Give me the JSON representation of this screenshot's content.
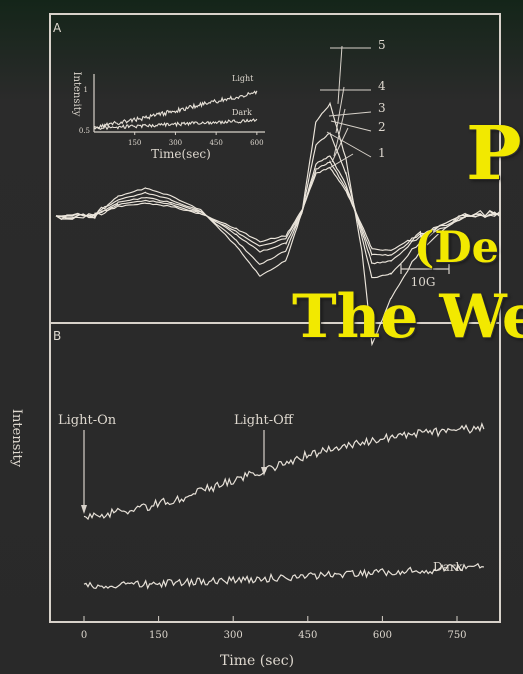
{
  "slide": {
    "background_color": "#1f3324",
    "title_color": "#f2e900",
    "title_lines": [
      "P",
      "(De",
      "The We"
    ]
  },
  "figure": {
    "y_axis_label": "Intensity",
    "x_axis_label": "Time (sec)",
    "panel_a_label": "A",
    "panel_b_label": "B",
    "scale_bar_label": "10G",
    "spectrum_labels": [
      "5",
      "4",
      "3",
      "2",
      "1"
    ],
    "inset": {
      "ylabel": "Intensity",
      "xlabel": "Time(sec)",
      "xticks": [
        "150",
        "300",
        "450",
        "600"
      ],
      "yticks": [
        "1",
        "0.5"
      ],
      "series_labels": [
        "Light",
        "Dark"
      ]
    },
    "panel_b_annotations": {
      "light_on": "Light-On",
      "light_off": "Light-Off",
      "dark": "Dark"
    },
    "panel_b_xticks": [
      "0",
      "150",
      "300",
      "450",
      "600",
      "750"
    ]
  },
  "chart_data": [
    {
      "type": "line",
      "title": "",
      "xlabel": "Time(sec)",
      "ylabel": "Intensity",
      "xlim": [
        0,
        630
      ],
      "ylim": [
        0.45,
        1.35
      ],
      "grid": false,
      "series": [
        {
          "name": "Light",
          "x": [
            0,
            100,
            200,
            300,
            400,
            500,
            600
          ],
          "values": [
            0.52,
            0.6,
            0.68,
            0.78,
            0.88,
            0.97,
            1.06
          ]
        },
        {
          "name": "Dark",
          "x": [
            0,
            100,
            200,
            300,
            400,
            500,
            600
          ],
          "values": [
            0.51,
            0.53,
            0.55,
            0.57,
            0.59,
            0.61,
            0.63
          ]
        }
      ]
    },
    {
      "type": "line",
      "title": "",
      "xlabel": "",
      "ylabel": "",
      "grid": false,
      "series": [
        {
          "name": "1",
          "values": [
            0.0,
            0.02,
            0.18,
            0.24,
            0.18,
            0.05,
            -0.2,
            -0.42,
            -0.32,
            0.12,
            0.75,
            0.85,
            0.45,
            -0.15,
            -0.55,
            -0.58,
            -0.28,
            0.02,
            0.05
          ]
        },
        {
          "name": "2",
          "values": [
            0.0,
            0.02,
            0.21,
            0.29,
            0.21,
            0.06,
            -0.25,
            -0.5,
            -0.37,
            0.1,
            0.82,
            0.95,
            0.5,
            -0.2,
            -0.65,
            -0.66,
            -0.3,
            0.03,
            0.05
          ]
        },
        {
          "name": "3",
          "values": [
            0.0,
            0.02,
            0.25,
            0.34,
            0.25,
            0.08,
            -0.3,
            -0.6,
            -0.45,
            0.08,
            0.92,
            1.05,
            0.56,
            -0.25,
            -0.8,
            -0.76,
            -0.33,
            0.04,
            0.06
          ]
        },
        {
          "name": "4",
          "values": [
            0.0,
            0.03,
            0.3,
            0.42,
            0.3,
            0.1,
            -0.4,
            -0.82,
            -0.58,
            0.08,
            1.25,
            1.45,
            0.75,
            -0.35,
            -1.05,
            -0.98,
            -0.42,
            0.05,
            0.07
          ]
        },
        {
          "name": "5",
          "values": [
            0.0,
            0.03,
            0.36,
            0.5,
            0.36,
            0.12,
            -0.5,
            -1.02,
            -0.75,
            0.08,
            1.65,
            1.95,
            1.0,
            -0.6,
            -2.2,
            -1.4,
            -0.55,
            0.05,
            0.08
          ]
        }
      ]
    },
    {
      "type": "line",
      "title": "",
      "xlabel": "Time (sec)",
      "ylabel": "Intensity",
      "xlim": [
        -60,
        820
      ],
      "ylim": [
        0,
        1
      ],
      "grid": false,
      "series": [
        {
          "name": "Light",
          "x": [
            0,
            100,
            200,
            300,
            370,
            450,
            550,
            650,
            750,
            800
          ],
          "values": [
            0.37,
            0.4,
            0.45,
            0.52,
            0.56,
            0.62,
            0.67,
            0.7,
            0.72,
            0.73
          ]
        },
        {
          "name": "Dark",
          "x": [
            0,
            100,
            200,
            300,
            400,
            500,
            600,
            700,
            800
          ],
          "values": [
            0.1,
            0.1,
            0.11,
            0.12,
            0.13,
            0.14,
            0.15,
            0.16,
            0.18
          ]
        }
      ]
    }
  ]
}
